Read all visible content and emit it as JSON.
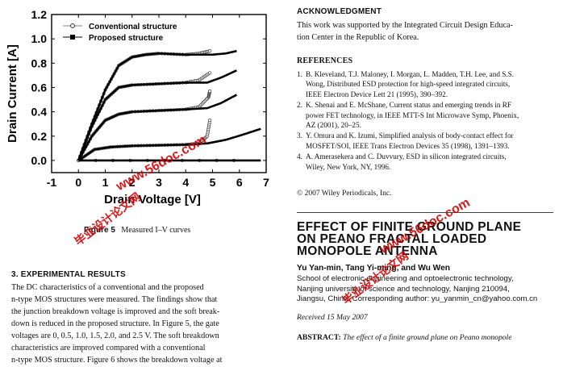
{
  "chart_data": {
    "type": "line",
    "xlabel": "Drain Voltage [V]",
    "ylabel": "Drain Current [A]",
    "xlim": [
      -1,
      7
    ],
    "ylim": [
      -0.1,
      1.2
    ],
    "xticks": [
      "-1",
      "0",
      "1",
      "2",
      "3",
      "4",
      "5",
      "6",
      "7"
    ],
    "yticks": [
      "0.0",
      "0.2",
      "0.4",
      "0.6",
      "0.8",
      "1.0",
      "1.2"
    ],
    "legend_placement": "top-left",
    "series": [
      {
        "name": "Conventional structure",
        "marker": "open-circle",
        "curves": [
          {
            "x": [
              0,
              5.8
            ],
            "y": [
              0,
              0
            ]
          },
          {
            "x": [
              0,
              0.6,
              1.2,
              2,
              3,
              4,
              4.5,
              4.8,
              4.9
            ],
            "y": [
              0,
              0.09,
              0.11,
              0.12,
              0.125,
              0.13,
              0.14,
              0.2,
              0.33
            ]
          },
          {
            "x": [
              0,
              0.5,
              1,
              1.5,
              2,
              3,
              4,
              4.5,
              4.85,
              4.9
            ],
            "y": [
              0,
              0.2,
              0.33,
              0.38,
              0.4,
              0.41,
              0.42,
              0.44,
              0.52,
              0.57
            ]
          },
          {
            "x": [
              0,
              0.5,
              1,
              1.5,
              2,
              3,
              4,
              4.5,
              4.9
            ],
            "y": [
              0,
              0.28,
              0.5,
              0.6,
              0.62,
              0.63,
              0.64,
              0.66,
              0.72
            ]
          },
          {
            "x": [
              0,
              0.5,
              1,
              1.5,
              2,
              2.5,
              3,
              4,
              4.5,
              4.9
            ],
            "y": [
              0,
              0.3,
              0.58,
              0.78,
              0.85,
              0.87,
              0.88,
              0.87,
              0.88,
              0.9
            ]
          }
        ]
      },
      {
        "name": "Proposed structure",
        "marker": "filled-square",
        "curves": [
          {
            "x": [
              0,
              6.8
            ],
            "y": [
              0,
              0
            ]
          },
          {
            "x": [
              0,
              0.6,
              1.2,
              2,
              3,
              4,
              4.8,
              5.5,
              6.1,
              6.8
            ],
            "y": [
              0,
              0.09,
              0.11,
              0.12,
              0.125,
              0.13,
              0.14,
              0.17,
              0.21,
              0.26
            ]
          },
          {
            "x": [
              0,
              0.5,
              1,
              1.5,
              2,
              3,
              4,
              4.8,
              5.3,
              5.9
            ],
            "y": [
              0,
              0.2,
              0.33,
              0.38,
              0.4,
              0.41,
              0.42,
              0.43,
              0.47,
              0.54
            ]
          },
          {
            "x": [
              0,
              0.5,
              1,
              1.5,
              2,
              3,
              4,
              4.8,
              5.3,
              5.9
            ],
            "y": [
              0,
              0.28,
              0.5,
              0.6,
              0.62,
              0.63,
              0.64,
              0.64,
              0.68,
              0.74
            ]
          },
          {
            "x": [
              0,
              0.5,
              1,
              1.5,
              2,
              2.5,
              3,
              4,
              5,
              5.5,
              5.9
            ],
            "y": [
              0,
              0.3,
              0.58,
              0.78,
              0.85,
              0.87,
              0.88,
              0.87,
              0.87,
              0.88,
              0.9
            ]
          }
        ]
      }
    ]
  },
  "figure": {
    "label": "Figure 5",
    "caption": "Measured I–V curves"
  },
  "results": {
    "heading": "3. EXPERIMENTAL RESULTS",
    "lines": [
      "The DC characteristics of a conventional and the proposed",
      "n-type MOS structures were measured. The findings show that",
      "the junction breakdown voltage is improved and the soft break-",
      "down is reduced in the proposed structure. In Figure 5, the gate",
      "voltages are 0, 0.5, 1.0, 1.5, 2.0, and 2.5 V. The soft breakdown",
      "characteristics are improved compared with a conventional",
      "n-type MOS structure. Figure 6 shows the breakdown voltage at"
    ]
  },
  "ack": {
    "heading": "ACKNOWLEDGMENT",
    "lines": [
      "This work was supported by the Integrated Circuit Design Educa-",
      "tion Center in the Republic of Korea."
    ]
  },
  "references": {
    "heading": "REFERENCES",
    "items": [
      {
        "num": "1.",
        "lines": [
          "B. Kleveland, T.J. Maloney, I. Morgan, L. Madden, T.H. Lee, and S.S.",
          "Wong, Distributed ESD protection for high-speed integrated circuits,",
          "IEEE Electron Device Lett 21 (1995), 390–392."
        ]
      },
      {
        "num": "2.",
        "lines": [
          "K. Shenai and E. McShane, Current status and emerging trends in RF",
          "power FET technology, in IEEE MTT-S Int Microwave Symp, Phoenix,",
          "AZ (2001), 20–25."
        ]
      },
      {
        "num": "3.",
        "lines": [
          "Y. Omura and K. Izumi, Simplified analysis of body-contact effect for",
          "MOSFET/SOI, IEEE Trans Electron Devices 35 (1998), 1391–1393."
        ]
      },
      {
        "num": "4.",
        "lines": [
          "A. Amerasekera and C. Duvvury, ESD in silicon integrated circuits,",
          "Wiley, New York, NY, 1996."
        ]
      }
    ]
  },
  "copyright": "© 2007 Wiley Periodicals, Inc.",
  "article": {
    "title_lines": [
      "EFFECT OF FINITE GROUND PLANE",
      "ON PEANO FRACTAL LOADED",
      "MONOPOLE ANTENNA"
    ],
    "authors": "Yu Yan-min, Tang Yi-ming, and Wu Wen",
    "affiliation_lines": [
      "School of electronic engineering and optoelectronic technology,",
      "Nanjing university of science and technology, Nanjing 210094,",
      "Jiangsu, China; Corresponding author: yu_yanmin_cn@yahoo.com.cn"
    ],
    "received": "Received 15 May 2007",
    "abstract_label": "ABSTRACT:",
    "abstract_text": "The effect of a finite ground plane on Peano monopole"
  },
  "watermark": {
    "site": "www.56doc.com",
    "cn": "毕业设计论文网"
  }
}
